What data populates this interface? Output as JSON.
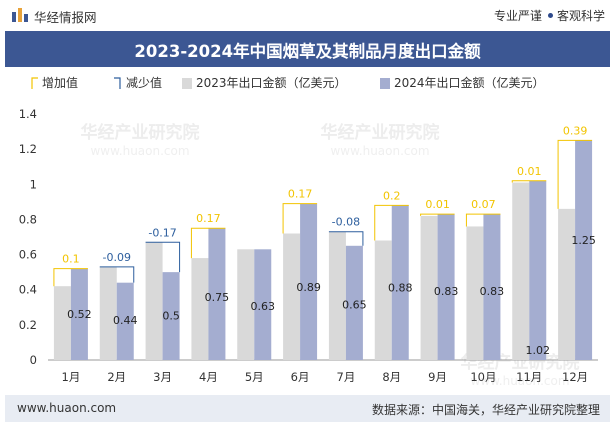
{
  "header": {
    "brand": "华经情报网",
    "tagline_left": "专业严谨",
    "tagline_right": "客观科学"
  },
  "title": "2023-2024年中国烟草及其制品月度出口金额",
  "footer": {
    "url": "www.huaon.com",
    "source": "数据来源：中国海关，华经产业研究院整理"
  },
  "watermark": "华经产业研究院",
  "watermark_url": "www.huaon.com",
  "colors": {
    "bar2023": "#d9d9d9",
    "bar2024": "#a4add0",
    "increase": "#f2c400",
    "decrease": "#2e5f9e",
    "header_bg": "#3c5793",
    "footer_bg": "#e8ecf3"
  },
  "chart_data": {
    "type": "bar",
    "categories": [
      "1月",
      "2月",
      "3月",
      "4月",
      "5月",
      "6月",
      "7月",
      "8月",
      "9月",
      "10月",
      "11月",
      "12月"
    ],
    "series": [
      {
        "name": "2023年出口金额（亿美元）",
        "values": [
          0.42,
          0.53,
          0.67,
          0.58,
          0.63,
          0.72,
          0.73,
          0.68,
          0.82,
          0.76,
          1.01,
          0.86
        ]
      },
      {
        "name": "2024年出口金额（亿美元）",
        "values": [
          0.52,
          0.44,
          0.5,
          0.75,
          0.63,
          0.89,
          0.65,
          0.88,
          0.83,
          0.83,
          1.02,
          1.25
        ]
      }
    ],
    "data_labels": [
      "0.52",
      "0.44",
      "0.5",
      "0.75",
      "0.63",
      "0.89",
      "0.65",
      "0.88",
      "0.83",
      "0.83",
      "1.02",
      "1.25"
    ],
    "change_labels": [
      "0.1",
      "-0.09",
      "-0.17",
      "0.17",
      "",
      "0.17",
      "-0.08",
      "0.2",
      "0.01",
      "0.07",
      "0.01",
      "0.39"
    ],
    "change_type": [
      "increase",
      "decrease",
      "decrease",
      "increase",
      "none",
      "increase",
      "decrease",
      "increase",
      "increase",
      "increase",
      "increase",
      "increase"
    ],
    "legend": [
      "增加值",
      "减少值",
      "2023年出口金额（亿美元）",
      "2024年出口金额（亿美元）"
    ],
    "legend_position": "top-left",
    "y_ticks": [
      "0",
      "0.2",
      "0.4",
      "0.6",
      "0.8",
      "1",
      "1.2",
      "1.4"
    ],
    "ylim": [
      0,
      1.4
    ],
    "grid": false
  }
}
